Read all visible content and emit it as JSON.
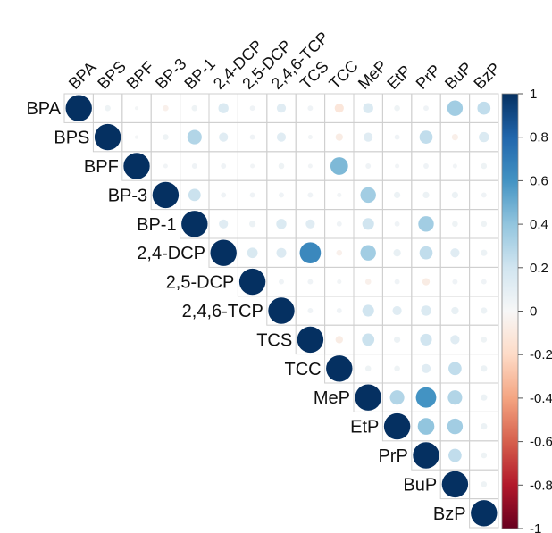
{
  "chart_data": {
    "type": "heatmap",
    "variables": [
      "BPA",
      "BPS",
      "BPF",
      "BP-3",
      "BP-1",
      "2,4-DCP",
      "2,5-DCP",
      "2,4,6-TCP",
      "TCS",
      "TCC",
      "MeP",
      "EtP",
      "PrP",
      "BuP",
      "BzP"
    ],
    "correlations": [
      [
        1,
        0.05,
        0.02,
        -0.05,
        0.05,
        0.15,
        0.04,
        0.12,
        0.04,
        -0.12,
        0.15,
        0.05,
        0.04,
        0.35,
        0.25
      ],
      [
        0.05,
        1,
        0.02,
        0.05,
        0.3,
        0.12,
        0.04,
        0.12,
        0.03,
        -0.08,
        0.12,
        0.04,
        0.25,
        -0.06,
        0.15
      ],
      [
        0.02,
        0.02,
        1,
        0.03,
        0.04,
        0.04,
        0.03,
        0.05,
        0.03,
        0.45,
        0.04,
        0.03,
        0.04,
        0.03,
        0.05
      ],
      [
        -0.05,
        0.05,
        0.03,
        1,
        0.22,
        0.04,
        0.04,
        0.04,
        0.04,
        0.03,
        0.35,
        0.06,
        0.06,
        0.06,
        0.04
      ],
      [
        0.05,
        0.3,
        0.04,
        0.22,
        1,
        0.12,
        0.06,
        0.15,
        0.12,
        0.04,
        0.2,
        0.04,
        0.35,
        0.05,
        0.05
      ],
      [
        0.15,
        0.12,
        0.04,
        0.04,
        0.12,
        1,
        0.16,
        0.14,
        0.65,
        -0.05,
        0.35,
        0.08,
        0.25,
        0.12,
        0.06
      ],
      [
        0.04,
        0.04,
        0.03,
        0.04,
        0.06,
        0.16,
        1,
        0.04,
        0.04,
        0.03,
        -0.05,
        0.04,
        -0.08,
        0.04,
        0.04
      ],
      [
        0.12,
        0.12,
        0.05,
        0.04,
        0.15,
        0.14,
        0.04,
        1,
        0.04,
        0.04,
        0.2,
        0.12,
        0.15,
        0.08,
        0.06
      ],
      [
        0.04,
        0.03,
        0.03,
        0.04,
        0.12,
        0.65,
        0.04,
        0.04,
        1,
        -0.08,
        0.22,
        0.06,
        0.2,
        0.12,
        0.05
      ],
      [
        -0.12,
        -0.08,
        0.45,
        0.03,
        0.04,
        -0.05,
        0.03,
        0.04,
        -0.08,
        1,
        0.05,
        0.05,
        0.12,
        0.25,
        0.06
      ],
      [
        0.15,
        0.12,
        0.04,
        0.35,
        0.2,
        0.35,
        -0.05,
        0.2,
        0.22,
        0.05,
        1,
        0.3,
        0.6,
        0.3,
        0.06
      ],
      [
        0.05,
        0.04,
        0.03,
        0.06,
        0.04,
        0.08,
        0.04,
        0.12,
        0.06,
        0.05,
        0.3,
        1,
        0.4,
        0.35,
        0.06
      ],
      [
        0.04,
        0.25,
        0.04,
        0.06,
        0.35,
        0.25,
        -0.08,
        0.15,
        0.2,
        0.12,
        0.6,
        0.4,
        1,
        0.25,
        0.05
      ],
      [
        0.35,
        -0.06,
        0.03,
        0.06,
        0.05,
        0.12,
        0.04,
        0.08,
        0.12,
        0.25,
        0.3,
        0.35,
        0.25,
        1,
        0.05
      ],
      [
        0.25,
        0.15,
        0.05,
        0.04,
        0.05,
        0.06,
        0.04,
        0.06,
        0.05,
        0.06,
        0.06,
        0.06,
        0.05,
        0.05,
        1
      ]
    ],
    "layout": "upper-triangle with diagonal",
    "glyph": "circle",
    "colorbar": {
      "range": [
        -1,
        1
      ],
      "ticks": [
        "1",
        "0.8",
        "0.6",
        "0.4",
        "0.2",
        "0",
        "-0.2",
        "-0.4",
        "-0.6",
        "-0.8",
        "-1"
      ],
      "colors": {
        "negative": "#67001f",
        "neutral": "#f7f7f7",
        "positive": "#053061"
      }
    },
    "grid": true,
    "legend_position": "right"
  }
}
